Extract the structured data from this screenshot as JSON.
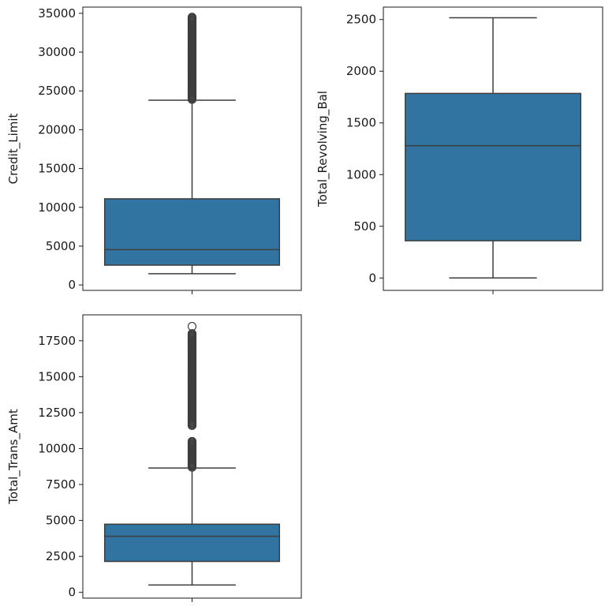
{
  "chart_data": [
    {
      "type": "box",
      "ylabel": "Credit_Limit",
      "ylim": [
        -700,
        35800
      ],
      "yticks": [
        0,
        5000,
        10000,
        15000,
        20000,
        25000,
        30000,
        35000
      ],
      "ytick_labels": [
        "0",
        "5000",
        "10000",
        "15000",
        "20000",
        "25000",
        "30000",
        "35000"
      ],
      "stats": {
        "whislo": 1450,
        "q1": 2550,
        "median": 4550,
        "q3": 11100,
        "whishi": 23800
      },
      "fliers": {
        "ranges": [
          [
            23900,
            34500
          ]
        ],
        "singles": []
      },
      "box_color": "#3274a1"
    },
    {
      "type": "box",
      "ylabel": "Total_Revolving_Bal",
      "ylim": [
        -120,
        2620
      ],
      "yticks": [
        0,
        500,
        1000,
        1500,
        2000,
        2500
      ],
      "ytick_labels": [
        "0",
        "500",
        "1000",
        "1500",
        "2000",
        "2500"
      ],
      "stats": {
        "whislo": 0,
        "q1": 360,
        "median": 1280,
        "q3": 1785,
        "whishi": 2517
      },
      "fliers": {
        "ranges": [],
        "singles": []
      },
      "box_color": "#3274a1"
    },
    {
      "type": "box",
      "ylabel": "Total_Trans_Amt",
      "ylim": [
        -400,
        19300
      ],
      "yticks": [
        0,
        2500,
        5000,
        7500,
        10000,
        12500,
        15000,
        17500
      ],
      "ytick_labels": [
        "0",
        "2500",
        "5000",
        "7500",
        "10000",
        "12500",
        "15000",
        "17500"
      ],
      "stats": {
        "whislo": 510,
        "q1": 2150,
        "median": 3900,
        "q3": 4740,
        "whishi": 8650
      },
      "fliers": {
        "ranges": [
          [
            8700,
            10500
          ],
          [
            11600,
            18000
          ]
        ],
        "singles": [
          18500
        ]
      },
      "box_color": "#3274a1"
    }
  ]
}
